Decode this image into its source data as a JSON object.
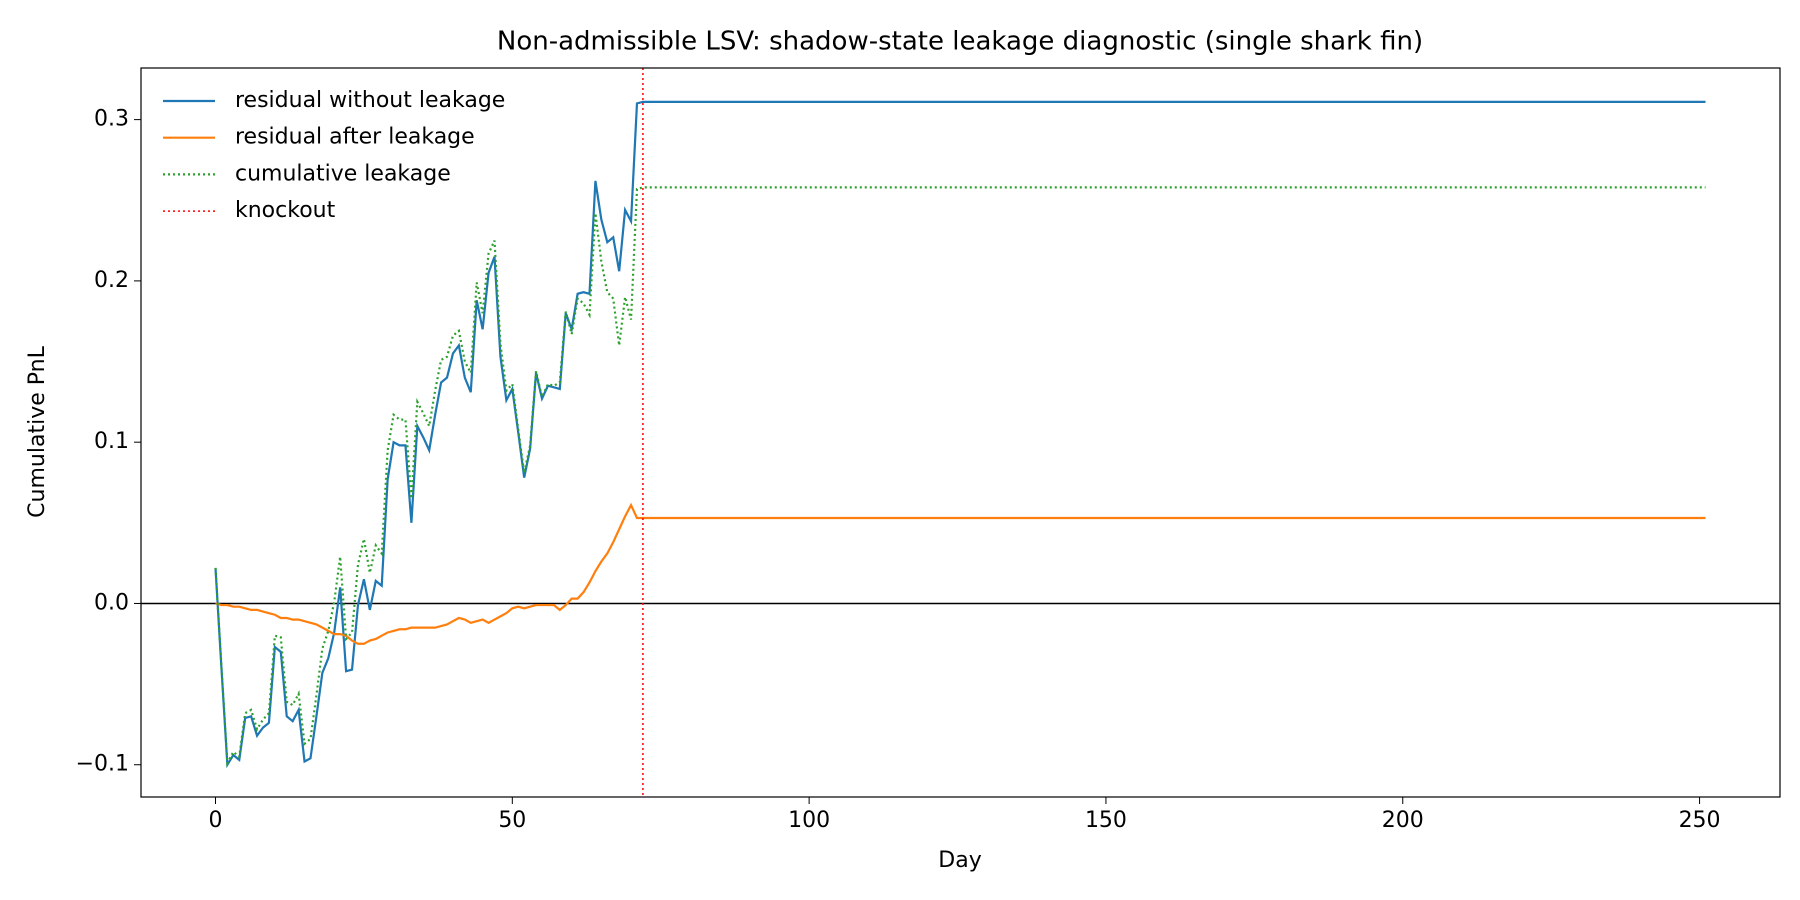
{
  "chart_data": {
    "type": "line",
    "title": "Non-admissible LSV: shadow-state leakage diagnostic (single shark fin)",
    "xlabel": "Day",
    "ylabel": "Cumulative PnL",
    "x": [
      0,
      1,
      2,
      3,
      4,
      5,
      6,
      7,
      8,
      9,
      10,
      11,
      12,
      13,
      14,
      15,
      16,
      17,
      18,
      19,
      20,
      21,
      22,
      23,
      24,
      25,
      26,
      27,
      28,
      29,
      30,
      31,
      32,
      33,
      34,
      35,
      36,
      37,
      38,
      39,
      40,
      41,
      42,
      43,
      44,
      45,
      46,
      47,
      48,
      49,
      50,
      51,
      52,
      53,
      54,
      55,
      56,
      57,
      58,
      59,
      60,
      61,
      62,
      63,
      64,
      65,
      66,
      67,
      68,
      69,
      70,
      71,
      72,
      251
    ],
    "series": [
      {
        "name": "residual without leakage",
        "color": "#1f77b4",
        "style": "solid",
        "values": [
          0.022,
          -0.04,
          -0.1,
          -0.094,
          -0.097,
          -0.071,
          -0.07,
          -0.082,
          -0.077,
          -0.074,
          -0.027,
          -0.03,
          -0.07,
          -0.073,
          -0.066,
          -0.098,
          -0.096,
          -0.07,
          -0.043,
          -0.034,
          -0.018,
          0.01,
          -0.042,
          -0.041,
          -0.001,
          0.015,
          -0.004,
          0.014,
          0.011,
          0.077,
          0.1,
          0.098,
          0.098,
          0.05,
          0.11,
          0.103,
          0.095,
          0.117,
          0.137,
          0.14,
          0.155,
          0.16,
          0.14,
          0.131,
          0.188,
          0.17,
          0.205,
          0.215,
          0.153,
          0.126,
          0.133,
          0.106,
          0.078,
          0.096,
          0.143,
          0.127,
          0.135,
          0.134,
          0.133,
          0.18,
          0.17,
          0.192,
          0.193,
          0.192,
          0.262,
          0.238,
          0.224,
          0.227,
          0.206,
          0.244,
          0.237,
          0.31,
          0.311,
          0.311
        ]
      },
      {
        "name": "residual after leakage",
        "color": "#ff7f0e",
        "style": "solid",
        "values": [
          0.0,
          -0.001,
          -0.001,
          -0.002,
          -0.002,
          -0.003,
          -0.004,
          -0.004,
          -0.005,
          -0.006,
          -0.007,
          -0.009,
          -0.009,
          -0.01,
          -0.01,
          -0.011,
          -0.012,
          -0.013,
          -0.015,
          -0.017,
          -0.019,
          -0.019,
          -0.02,
          -0.023,
          -0.025,
          -0.025,
          -0.023,
          -0.022,
          -0.02,
          -0.018,
          -0.017,
          -0.016,
          -0.016,
          -0.015,
          -0.015,
          -0.015,
          -0.015,
          -0.015,
          -0.014,
          -0.013,
          -0.011,
          -0.009,
          -0.01,
          -0.012,
          -0.011,
          -0.01,
          -0.012,
          -0.01,
          -0.008,
          -0.006,
          -0.003,
          -0.002,
          -0.003,
          -0.002,
          -0.001,
          -0.001,
          -0.001,
          -0.001,
          -0.004,
          -0.001,
          0.003,
          0.003,
          0.007,
          0.013,
          0.02,
          0.026,
          0.031,
          0.038,
          0.046,
          0.054,
          0.061,
          0.053,
          0.053,
          0.053
        ]
      },
      {
        "name": "cumulative leakage",
        "color": "#2ca02c",
        "style": "dotted",
        "values": [
          0.022,
          -0.039,
          -0.099,
          -0.092,
          -0.095,
          -0.068,
          -0.066,
          -0.078,
          -0.072,
          -0.068,
          -0.02,
          -0.021,
          -0.061,
          -0.063,
          -0.056,
          -0.087,
          -0.084,
          -0.057,
          -0.028,
          -0.017,
          0.001,
          0.029,
          -0.022,
          -0.018,
          0.024,
          0.04,
          0.019,
          0.036,
          0.031,
          0.095,
          0.117,
          0.114,
          0.114,
          0.065,
          0.125,
          0.118,
          0.11,
          0.132,
          0.151,
          0.153,
          0.166,
          0.169,
          0.15,
          0.143,
          0.199,
          0.18,
          0.217,
          0.225,
          0.161,
          0.132,
          0.136,
          0.108,
          0.081,
          0.098,
          0.144,
          0.128,
          0.136,
          0.135,
          0.137,
          0.181,
          0.167,
          0.189,
          0.186,
          0.179,
          0.242,
          0.212,
          0.193,
          0.189,
          0.16,
          0.19,
          0.176,
          0.257,
          0.258,
          0.258
        ]
      }
    ],
    "knockout": {
      "name": "knockout",
      "x": 72,
      "color": "#ff0000",
      "style": "dotted"
    },
    "hline": 0,
    "xlim": [
      -12.55,
      263.55
    ],
    "xticks": [
      0,
      50,
      100,
      150,
      200,
      250
    ],
    "ylim": [
      -0.12,
      0.332
    ],
    "yticks": [
      {
        "value": -0.1,
        "label": "−0.1"
      },
      {
        "value": 0,
        "label": "0.0"
      },
      0.1,
      0.2,
      0.3
    ],
    "legend": "upper left"
  }
}
